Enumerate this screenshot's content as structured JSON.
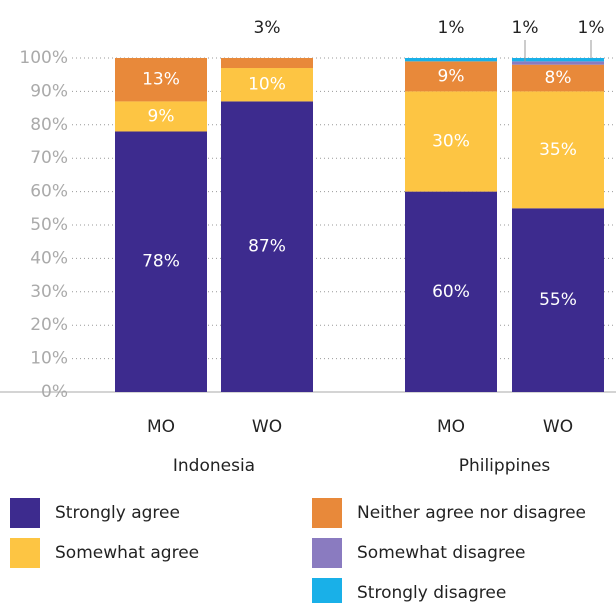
{
  "chart_data": {
    "type": "stacked-bar",
    "categories": [
      "MO",
      "WO",
      "MO",
      "WO"
    ],
    "groups": [
      "Indonesia",
      "Philippines"
    ],
    "series": [
      {
        "name": "Strongly agree",
        "color": "#3d2b8e",
        "values": [
          78,
          87,
          60,
          55
        ],
        "value_labels": [
          "78%",
          "87%",
          "60%",
          "55%"
        ]
      },
      {
        "name": "Somewhat agree",
        "color": "#fdc543",
        "values": [
          9,
          10,
          30,
          35
        ],
        "value_labels": [
          "9%",
          "10%",
          "30%",
          "35%"
        ]
      },
      {
        "name": "Neither agree nor disagree",
        "color": "#e8893a",
        "values": [
          13,
          3,
          9,
          8
        ],
        "value_labels": [
          "13%",
          "3%",
          "9%",
          "8%"
        ]
      },
      {
        "name": "Somewhat disagree",
        "color": "#8a7bc0",
        "values": [
          0,
          0,
          0,
          1
        ],
        "value_labels": [
          null,
          null,
          null,
          "1%"
        ]
      },
      {
        "name": "Strongly disagree",
        "color": "#19b0e8",
        "values": [
          0,
          0,
          1,
          1
        ],
        "value_labels": [
          null,
          null,
          "1%",
          "1%"
        ]
      }
    ],
    "ylim": [
      0,
      100
    ],
    "yticks": [
      {
        "value": 0,
        "label": "0%"
      },
      {
        "value": 10,
        "label": "10%"
      },
      {
        "value": 20,
        "label": "20%"
      },
      {
        "value": 30,
        "label": "30%"
      },
      {
        "value": 40,
        "label": "40%"
      },
      {
        "value": 50,
        "label": "50%"
      },
      {
        "value": 60,
        "label": "60%"
      },
      {
        "value": 70,
        "label": "70%"
      },
      {
        "value": 80,
        "label": "80%"
      },
      {
        "value": 90,
        "label": "90%"
      },
      {
        "value": 100,
        "label": "100%"
      }
    ],
    "grid": true
  }
}
